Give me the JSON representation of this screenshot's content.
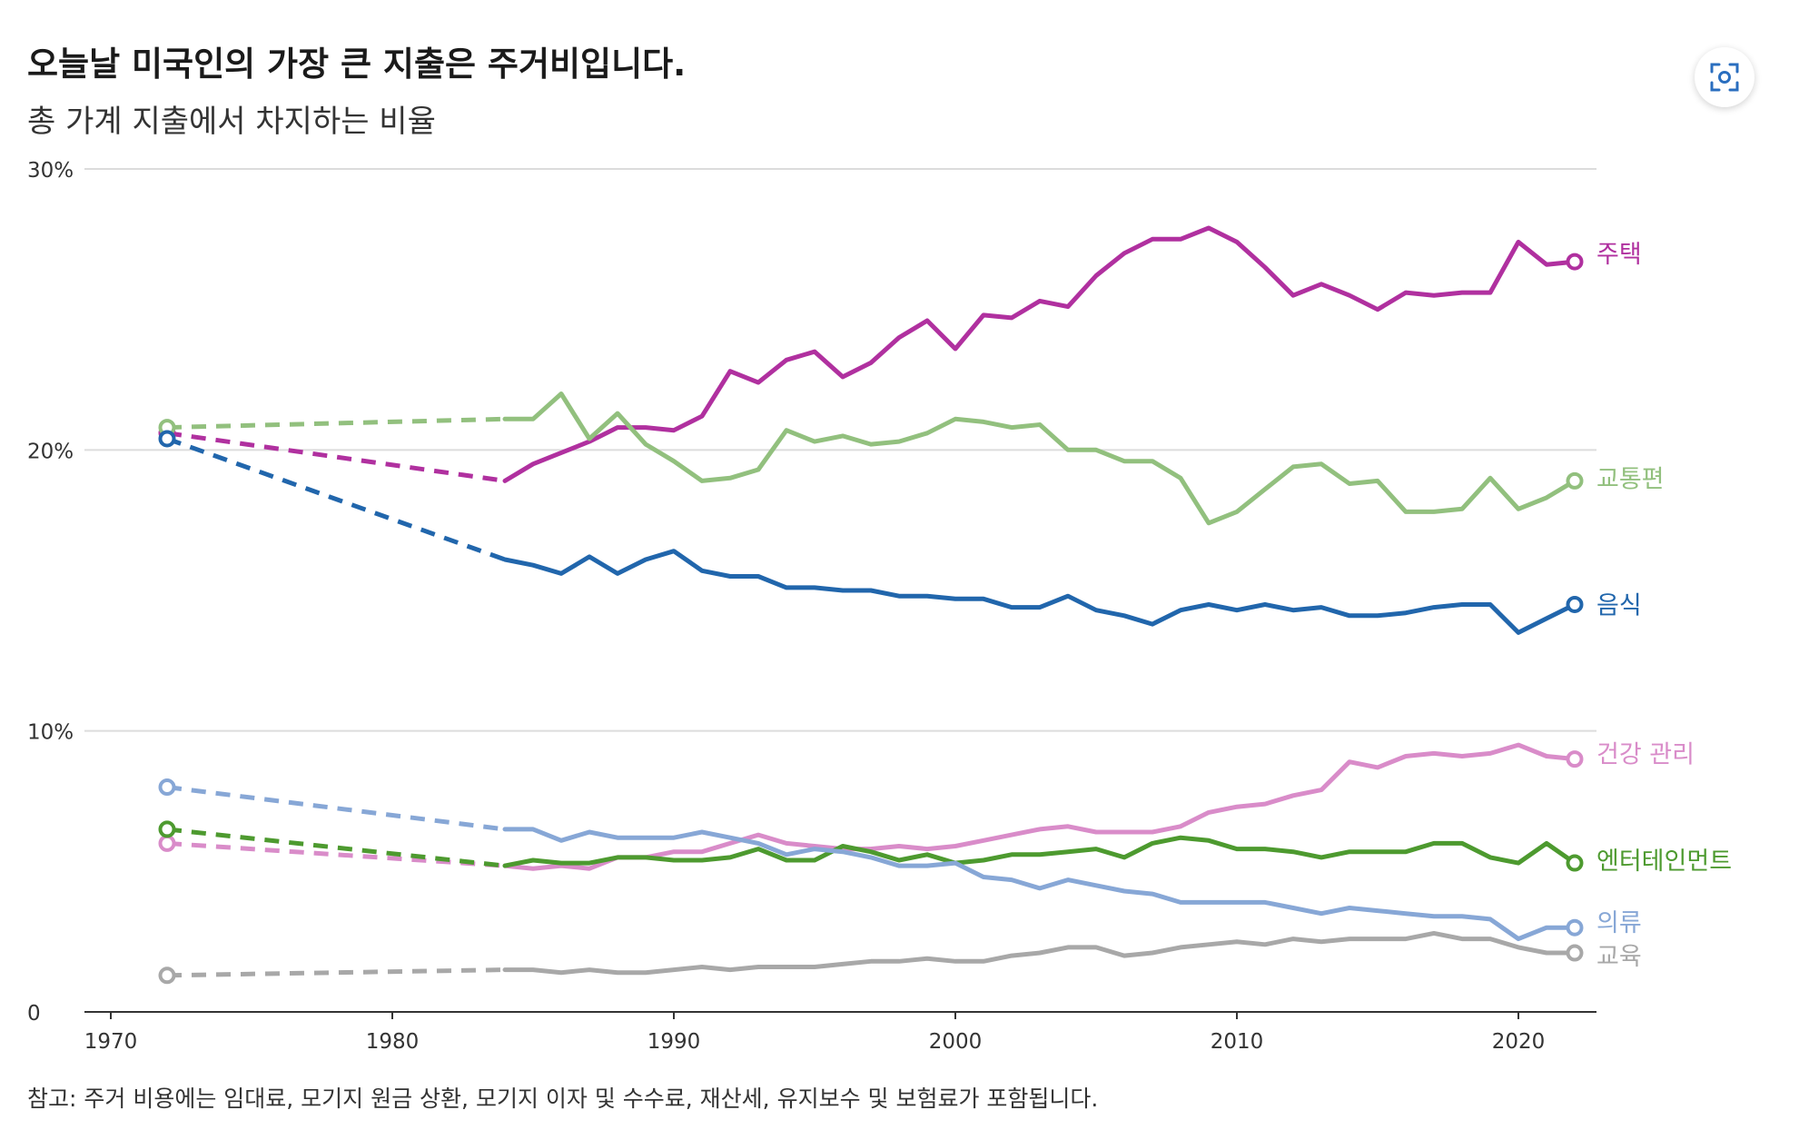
{
  "header": {
    "title": "오늘날 미국인의 가장 큰 지출은 주거비입니다.",
    "subtitle": "총 가계 지출에서 차지하는 비율"
  },
  "footer": {
    "note": "참고: 주거 비용에는 임대료, 모기지 원금 상환, 모기지 이자 및 수수료, 재산세, 유지보수 및 보험료가 포함됩니다."
  },
  "toolbar": {
    "expand_icon": "expand-icon"
  },
  "chart_data": {
    "type": "line",
    "title": "오늘날 미국인의 가장 큰 지출은 주거비입니다.",
    "subtitle": "총 가계 지출에서 차지하는 비율",
    "xlabel": "",
    "ylabel": "",
    "xlim": [
      1970,
      2023
    ],
    "ylim": [
      0,
      30
    ],
    "grid": true,
    "legend": "direct labels at line ends (right)",
    "x_ticks": [
      1970,
      1980,
      1990,
      2000,
      2010,
      2020
    ],
    "x_tick_labels": [
      "1970",
      "1980",
      "1990",
      "2000",
      "2010",
      "2020"
    ],
    "y_ticks": [
      0,
      10,
      20,
      30
    ],
    "y_tick_labels": [
      "0",
      "10%",
      "20%",
      "30%"
    ],
    "dashed_segment": "1972 to 1984 (no data between)",
    "series": [
      {
        "name": "주택",
        "color": "#b0309f",
        "x": [
          1972,
          1984,
          1985,
          1986,
          1987,
          1988,
          1989,
          1990,
          1991,
          1992,
          1993,
          1994,
          1995,
          1996,
          1997,
          1998,
          1999,
          2000,
          2001,
          2002,
          2003,
          2004,
          2005,
          2006,
          2007,
          2008,
          2009,
          2010,
          2011,
          2012,
          2013,
          2014,
          2015,
          2016,
          2017,
          2018,
          2019,
          2020,
          2021,
          2022
        ],
        "values": [
          20.6,
          18.9,
          19.5,
          19.9,
          20.3,
          20.8,
          20.8,
          20.7,
          21.2,
          22.8,
          22.4,
          23.2,
          23.5,
          22.6,
          23.1,
          24.0,
          24.6,
          23.6,
          24.8,
          24.7,
          25.3,
          25.1,
          26.2,
          27.0,
          27.5,
          27.5,
          27.9,
          27.4,
          26.5,
          25.5,
          25.9,
          25.5,
          25.0,
          25.6,
          25.5,
          25.6,
          25.6,
          27.4,
          26.6,
          26.7
        ]
      },
      {
        "name": "교통편",
        "color": "#92c07e",
        "x": [
          1972,
          1984,
          1985,
          1986,
          1987,
          1988,
          1989,
          1990,
          1991,
          1992,
          1993,
          1994,
          1995,
          1996,
          1997,
          1998,
          1999,
          2000,
          2001,
          2002,
          2003,
          2004,
          2005,
          2006,
          2007,
          2008,
          2009,
          2010,
          2011,
          2012,
          2013,
          2014,
          2015,
          2016,
          2017,
          2018,
          2019,
          2020,
          2021,
          2022
        ],
        "values": [
          20.8,
          21.1,
          21.1,
          22.0,
          20.4,
          21.3,
          20.2,
          19.6,
          18.9,
          19.0,
          19.3,
          20.7,
          20.3,
          20.5,
          20.2,
          20.3,
          20.6,
          21.1,
          21.0,
          20.8,
          20.9,
          20.0,
          20.0,
          19.6,
          19.6,
          19.0,
          17.4,
          17.8,
          18.6,
          19.4,
          19.5,
          18.8,
          18.9,
          17.8,
          17.8,
          17.9,
          19.0,
          17.9,
          18.3,
          18.9
        ]
      },
      {
        "name": "음식",
        "color": "#2166ac",
        "x": [
          1972,
          1984,
          1985,
          1986,
          1987,
          1988,
          1989,
          1990,
          1991,
          1992,
          1993,
          1994,
          1995,
          1996,
          1997,
          1998,
          1999,
          2000,
          2001,
          2002,
          2003,
          2004,
          2005,
          2006,
          2007,
          2008,
          2009,
          2010,
          2011,
          2012,
          2013,
          2014,
          2015,
          2016,
          2017,
          2018,
          2019,
          2020,
          2021,
          2022
        ],
        "values": [
          20.4,
          16.1,
          15.9,
          15.6,
          16.2,
          15.6,
          16.1,
          16.4,
          15.7,
          15.5,
          15.5,
          15.1,
          15.1,
          15.0,
          15.0,
          14.8,
          14.8,
          14.7,
          14.7,
          14.4,
          14.4,
          14.8,
          14.3,
          14.1,
          13.8,
          14.3,
          14.5,
          14.3,
          14.5,
          14.3,
          14.4,
          14.1,
          14.1,
          14.2,
          14.4,
          14.5,
          14.5,
          13.5,
          14.0,
          14.5
        ]
      },
      {
        "name": "건강 관리",
        "color": "#d98cc9",
        "x": [
          1972,
          1984,
          1985,
          1986,
          1987,
          1988,
          1989,
          1990,
          1991,
          1992,
          1993,
          1994,
          1995,
          1996,
          1997,
          1998,
          1999,
          2000,
          2001,
          2002,
          2003,
          2004,
          2005,
          2006,
          2007,
          2008,
          2009,
          2010,
          2011,
          2012,
          2013,
          2014,
          2015,
          2016,
          2017,
          2018,
          2019,
          2020,
          2021,
          2022
        ],
        "values": [
          6.0,
          5.2,
          5.1,
          5.2,
          5.1,
          5.5,
          5.5,
          5.7,
          5.7,
          6.0,
          6.3,
          6.0,
          5.9,
          5.8,
          5.8,
          5.9,
          5.8,
          5.9,
          6.1,
          6.3,
          6.5,
          6.6,
          6.4,
          6.4,
          6.4,
          6.6,
          7.1,
          7.3,
          7.4,
          7.7,
          7.9,
          8.9,
          8.7,
          9.1,
          9.2,
          9.1,
          9.2,
          9.5,
          9.1,
          9.0
        ]
      },
      {
        "name": "엔터테인먼트",
        "color": "#4d9a2f",
        "x": [
          1972,
          1984,
          1985,
          1986,
          1987,
          1988,
          1989,
          1990,
          1991,
          1992,
          1993,
          1994,
          1995,
          1996,
          1997,
          1998,
          1999,
          2000,
          2001,
          2002,
          2003,
          2004,
          2005,
          2006,
          2007,
          2008,
          2009,
          2010,
          2011,
          2012,
          2013,
          2014,
          2015,
          2016,
          2017,
          2018,
          2019,
          2020,
          2021,
          2022
        ],
        "values": [
          6.5,
          5.2,
          5.4,
          5.3,
          5.3,
          5.5,
          5.5,
          5.4,
          5.4,
          5.5,
          5.8,
          5.4,
          5.4,
          5.9,
          5.7,
          5.4,
          5.6,
          5.3,
          5.4,
          5.6,
          5.6,
          5.7,
          5.8,
          5.5,
          6.0,
          6.2,
          6.1,
          5.8,
          5.8,
          5.7,
          5.5,
          5.7,
          5.7,
          5.7,
          6.0,
          6.0,
          5.5,
          5.3,
          6.0,
          5.3
        ]
      },
      {
        "name": "의류",
        "color": "#87a7d6",
        "x": [
          1972,
          1984,
          1985,
          1986,
          1987,
          1988,
          1989,
          1990,
          1991,
          1992,
          1993,
          1994,
          1995,
          1996,
          1997,
          1998,
          1999,
          2000,
          2001,
          2002,
          2003,
          2004,
          2005,
          2006,
          2007,
          2008,
          2009,
          2010,
          2011,
          2012,
          2013,
          2014,
          2015,
          2016,
          2017,
          2018,
          2019,
          2020,
          2021,
          2022
        ],
        "values": [
          8.0,
          6.5,
          6.5,
          6.1,
          6.4,
          6.2,
          6.2,
          6.2,
          6.4,
          6.2,
          6.0,
          5.6,
          5.8,
          5.7,
          5.5,
          5.2,
          5.2,
          5.3,
          4.8,
          4.7,
          4.4,
          4.7,
          4.5,
          4.3,
          4.2,
          3.9,
          3.9,
          3.9,
          3.9,
          3.7,
          3.5,
          3.7,
          3.6,
          3.5,
          3.4,
          3.4,
          3.3,
          2.6,
          3.0,
          3.0
        ]
      },
      {
        "name": "교육",
        "color": "#a8a8a8",
        "x": [
          1972,
          1984,
          1985,
          1986,
          1987,
          1988,
          1989,
          1990,
          1991,
          1992,
          1993,
          1994,
          1995,
          1996,
          1997,
          1998,
          1999,
          2000,
          2001,
          2002,
          2003,
          2004,
          2005,
          2006,
          2007,
          2008,
          2009,
          2010,
          2011,
          2012,
          2013,
          2014,
          2015,
          2016,
          2017,
          2018,
          2019,
          2020,
          2021,
          2022
        ],
        "values": [
          1.3,
          1.5,
          1.5,
          1.4,
          1.5,
          1.4,
          1.4,
          1.5,
          1.6,
          1.5,
          1.6,
          1.6,
          1.6,
          1.7,
          1.8,
          1.8,
          1.9,
          1.8,
          1.8,
          2.0,
          2.1,
          2.3,
          2.3,
          2.0,
          2.1,
          2.3,
          2.4,
          2.5,
          2.4,
          2.6,
          2.5,
          2.6,
          2.6,
          2.6,
          2.8,
          2.6,
          2.6,
          2.3,
          2.1,
          2.1
        ]
      }
    ]
  }
}
